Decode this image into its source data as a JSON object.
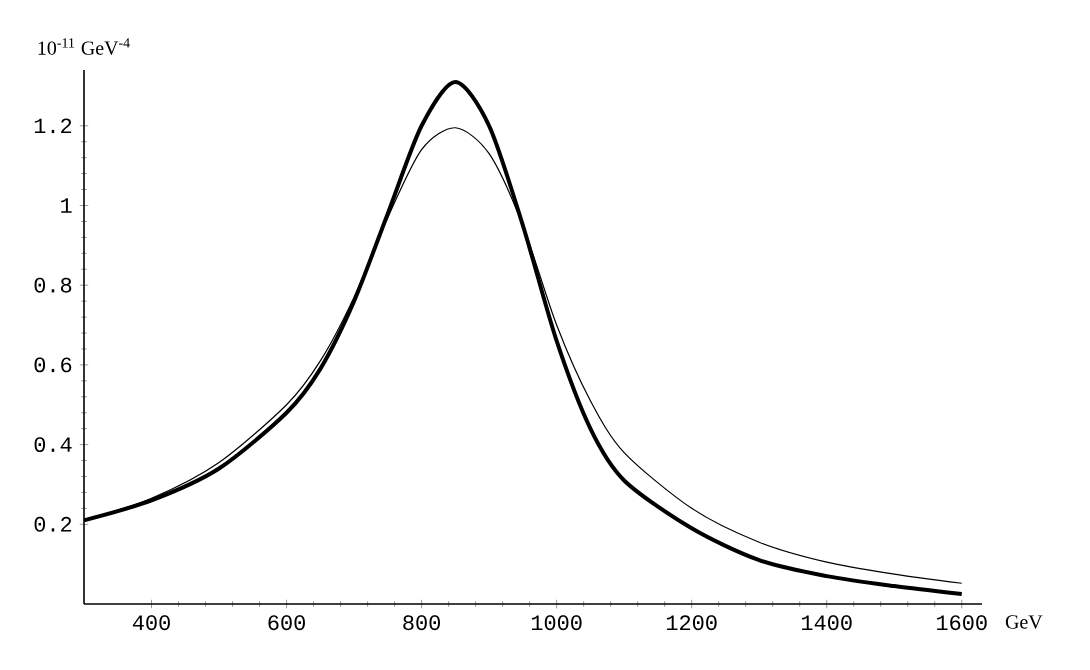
{
  "chart_data": {
    "type": "line",
    "xlabel": "GeV",
    "ylabel": "10$^{-11}$ GeV$^{-4}$",
    "x": [
      300,
      400,
      500,
      600,
      650,
      700,
      750,
      800,
      850,
      900,
      950,
      1000,
      1050,
      1100,
      1200,
      1300,
      1400,
      1500,
      1600
    ],
    "series": [
      {
        "color": "#000000",
        "values": [
          0.21,
          0.26,
          0.34,
          0.48,
          0.59,
          0.76,
          0.98,
          1.2,
          1.31,
          1.2,
          0.95,
          0.66,
          0.44,
          0.31,
          0.19,
          0.11,
          0.07,
          0.045,
          0.025
        ]
      },
      {
        "color": "#000000",
        "values": [
          0.21,
          0.265,
          0.355,
          0.5,
          0.61,
          0.77,
          0.97,
          1.14,
          1.195,
          1.13,
          0.95,
          0.7,
          0.51,
          0.38,
          0.24,
          0.155,
          0.105,
          0.075,
          0.052
        ]
      }
    ],
    "xlim": [
      300,
      1630
    ],
    "ylim": [
      0,
      1.34
    ],
    "xticks": [
      400,
      600,
      800,
      1000,
      1200,
      1400,
      1600
    ],
    "yticks": [
      0.2,
      0.4,
      0.6,
      0.8,
      1,
      1.2
    ],
    "marker": "none",
    "line_style": "solid"
  }
}
